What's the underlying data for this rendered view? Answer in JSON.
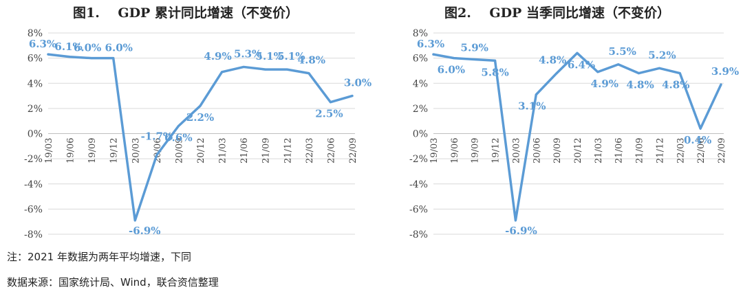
{
  "chart_data": [
    {
      "type": "line",
      "title": "图1.    GDP 累计同比增速（不变价）",
      "categories": [
        "19/03",
        "19/06",
        "19/09",
        "19/12",
        "20/03",
        "20/06",
        "20/09",
        "20/12",
        "21/03",
        "21/06",
        "21/09",
        "21/12",
        "22/03",
        "22/06",
        "22/09"
      ],
      "values": [
        6.3,
        6.1,
        6.0,
        6.0,
        -6.9,
        -1.7,
        0.6,
        2.2,
        4.9,
        5.3,
        5.1,
        5.1,
        4.8,
        2.5,
        3.0
      ],
      "labels": [
        "6.3%",
        "6.1%",
        "6.0%",
        "6.0%",
        "-6.9%",
        "-1.7%",
        "0.6%",
        "2.2%",
        "4.9%",
        "5.3%",
        "5.1%",
        "5.1%",
        "4.8%",
        "2.5%",
        "3.0%"
      ],
      "yticks": [
        "8%",
        "6%",
        "4%",
        "2%",
        "0%",
        "-2%",
        "-4%",
        "-6%",
        "-8%"
      ],
      "ylim": [
        -8,
        8
      ],
      "xlabel": "",
      "ylabel": "",
      "color": "#5b9bd5"
    },
    {
      "type": "line",
      "title": "图2.    GDP 当季同比增速（不变价）",
      "categories": [
        "19/03",
        "19/06",
        "19/09",
        "19/12",
        "20/03",
        "20/06",
        "20/09",
        "20/12",
        "21/03",
        "21/06",
        "21/09",
        "21/12",
        "22/03",
        "22/06",
        "22/09"
      ],
      "values": [
        6.3,
        6.0,
        5.9,
        5.8,
        -6.9,
        3.1,
        4.8,
        6.4,
        4.9,
        5.5,
        4.8,
        5.2,
        4.8,
        0.4,
        3.9
      ],
      "labels": [
        "6.3%",
        "6.0%",
        "5.9%",
        "5.8%",
        "-6.9%",
        "3.1%",
        "4.8%",
        "6.4%",
        "4.9%",
        "5.5%",
        "4.8%",
        "5.2%",
        "4.8%",
        "0.4%",
        "3.9%"
      ],
      "yticks": [
        "8%",
        "6%",
        "4%",
        "2%",
        "0%",
        "-2%",
        "-4%",
        "-6%",
        "-8%"
      ],
      "ylim": [
        -8,
        8
      ],
      "xlabel": "",
      "ylabel": "",
      "color": "#5b9bd5"
    }
  ],
  "notes": {
    "note": "注：2021 年数据为两年平均增速，下同",
    "source": "数据来源：国家统计局、Wind，联合资信整理"
  }
}
